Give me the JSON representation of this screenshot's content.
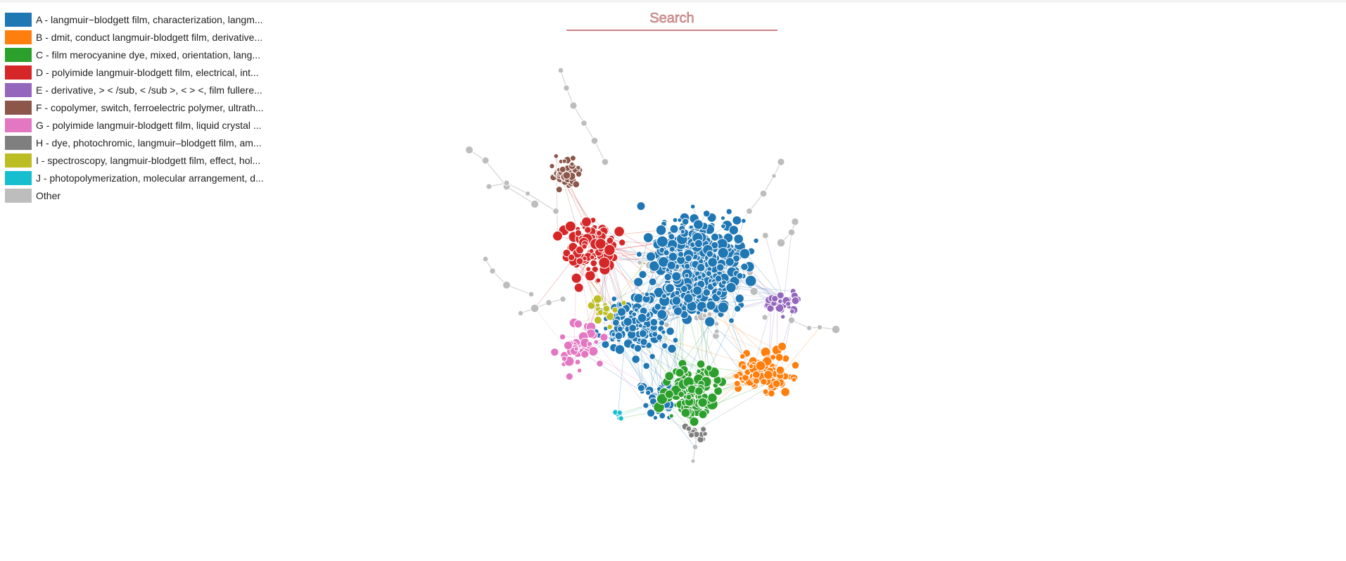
{
  "search": {
    "placeholder": "Search"
  },
  "legend": {
    "items": [
      {
        "label": "A - langmuir−blodgett film, characterization, langm...",
        "color": "#1f77b4"
      },
      {
        "label": "B - dmit, conduct langmuir-blodgett film, derivative...",
        "color": "#ff7f0e"
      },
      {
        "label": "C - film merocyanine dye, mixed, orientation, lang...",
        "color": "#2ca02c"
      },
      {
        "label": "D - polyimide langmuir-blodgett film, electrical, int...",
        "color": "#d62728"
      },
      {
        "label": "E - derivative, > < /sub, < /sub >, < > <, film fullere...",
        "color": "#9467bd"
      },
      {
        "label": "F - copolymer, switch, ferroelectric polymer, ultrath...",
        "color": "#8c564b"
      },
      {
        "label": "G - polyimide langmuir-blodgett film, liquid crystal ...",
        "color": "#e377c2"
      },
      {
        "label": "H - dye, photochromic, langmuir–blodgett film, am...",
        "color": "#7f7f7f"
      },
      {
        "label": "I - spectroscopy, langmuir-blodgett film, effect, hol...",
        "color": "#bcbd22"
      },
      {
        "label": "J - photopolymerization, molecular arrangement, d...",
        "color": "#17becf"
      },
      {
        "label": "Other",
        "color": "#bdbdbd"
      }
    ]
  }
}
